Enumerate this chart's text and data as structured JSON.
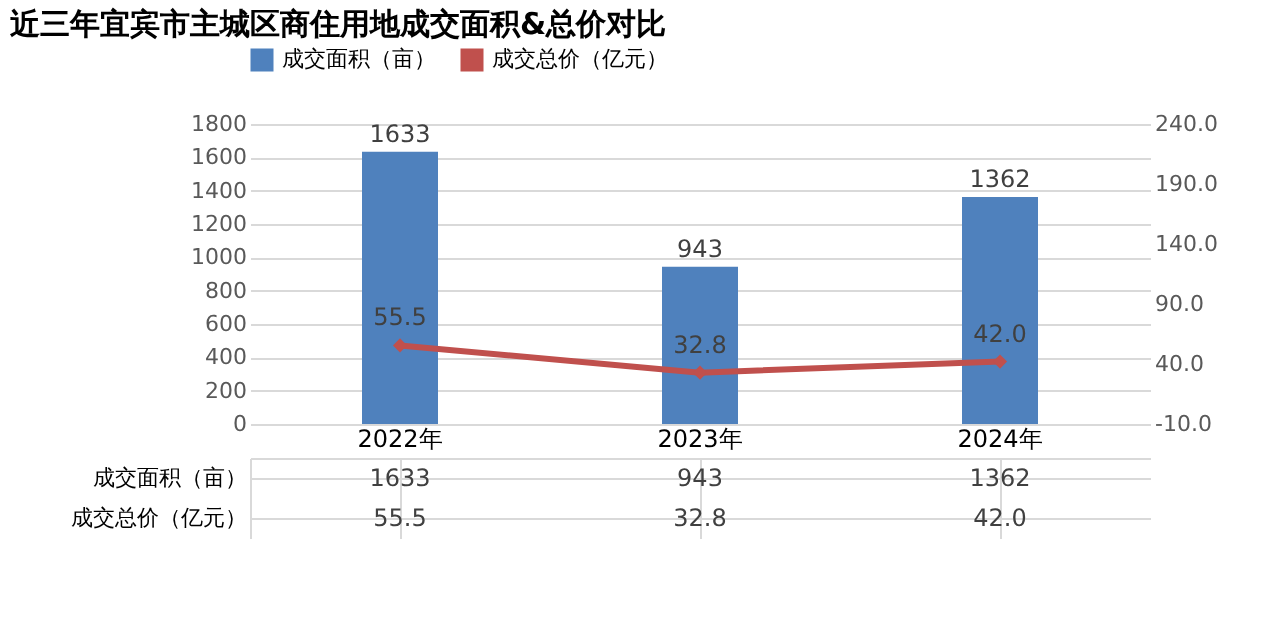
{
  "chart_data": {
    "type": "bar",
    "title": "近三年宜宾市主城区商住用地成交面积&总价对比",
    "categories": [
      "2022年",
      "2023年",
      "2024年"
    ],
    "series": [
      {
        "name": "成交面积（亩）",
        "color": "#4f81bd",
        "values": [
          1633,
          943,
          1362
        ],
        "value_labels": [
          "1633",
          "943",
          "1362"
        ]
      },
      {
        "name": "成交总价（亿元）",
        "color": "#c0504d",
        "type": "line",
        "axis": "y2",
        "marker": "diamond",
        "values": [
          55.5,
          32.8,
          42.0
        ],
        "value_labels": [
          "55.5",
          "32.8",
          "42.0"
        ]
      }
    ],
    "ylim": [
      0,
      1800
    ],
    "yticks": [
      0,
      200,
      400,
      600,
      800,
      1000,
      1200,
      1400,
      1600,
      1800
    ],
    "y2lim": [
      -10,
      240
    ],
    "y2ticks": [
      {
        "value": -10,
        "label": "-10.0"
      },
      {
        "value": 40,
        "label": "40.0"
      },
      {
        "value": 90,
        "label": "90.0"
      },
      {
        "value": 140,
        "label": "140.0"
      },
      {
        "value": 190,
        "label": "190.0"
      },
      {
        "value": 240,
        "label": "240.0"
      }
    ],
    "grid": "y",
    "legend": "top"
  }
}
